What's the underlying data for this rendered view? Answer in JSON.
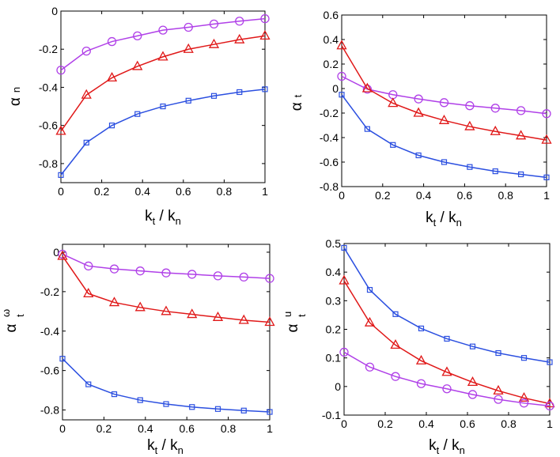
{
  "figure": {
    "panels": [
      {
        "id": "alpha-n",
        "y_symbol": "α",
        "y_sub": "n",
        "y_sup": "",
        "x_label_k": "k",
        "x_label_sub1": "t",
        "x_label_slash": " / k",
        "x_label_sub2": "n"
      },
      {
        "id": "alpha-t",
        "y_symbol": "α",
        "y_sub": "t",
        "y_sup": "",
        "x_label_k": "k",
        "x_label_sub1": "t",
        "x_label_slash": " / k",
        "x_label_sub2": "n"
      },
      {
        "id": "alpha-t-omega",
        "y_symbol": "α",
        "y_sub": "t",
        "y_sup": "ω",
        "x_label_k": "k",
        "x_label_sub1": "t",
        "x_label_slash": " / k",
        "x_label_sub2": "n"
      },
      {
        "id": "alpha-t-u",
        "y_symbol": "α",
        "y_sub": "t",
        "y_sup": "u",
        "x_label_k": "k",
        "x_label_sub1": "t",
        "x_label_slash": " / k",
        "x_label_sub2": "n"
      }
    ]
  },
  "colors": {
    "blue": "#2b4fe0",
    "red": "#e01818",
    "purple": "#b040e8"
  },
  "chart_data": [
    {
      "type": "line",
      "title": "",
      "xlabel": "k_t / k_n",
      "ylabel": "α_n",
      "xlim": [
        0,
        1
      ],
      "ylim": [
        -0.9,
        0
      ],
      "xticks": [
        0,
        0.2,
        0.4,
        0.6,
        0.8,
        1
      ],
      "xtick_labels": [
        "0",
        "0.2",
        "0.4",
        "0.6",
        "0.8",
        "1"
      ],
      "yticks": [
        -0.8,
        -0.6,
        -0.4,
        -0.2,
        0
      ],
      "ytick_labels": [
        "-0.8",
        "-0.6",
        "-0.4",
        "-0.2",
        "0"
      ],
      "x": [
        0,
        0.125,
        0.25,
        0.375,
        0.5,
        0.625,
        0.75,
        0.875,
        1
      ],
      "series": [
        {
          "name": "purple circles",
          "marker": "circle",
          "color": "#b040e8",
          "values": [
            -0.31,
            -0.21,
            -0.16,
            -0.13,
            -0.1,
            -0.085,
            -0.068,
            -0.053,
            -0.04
          ]
        },
        {
          "name": "red triangles",
          "marker": "triangle",
          "color": "#e01818",
          "values": [
            -0.63,
            -0.44,
            -0.35,
            -0.29,
            -0.24,
            -0.2,
            -0.175,
            -0.15,
            -0.13
          ]
        },
        {
          "name": "blue squares",
          "marker": "square",
          "color": "#2b4fe0",
          "values": [
            -0.86,
            -0.69,
            -0.6,
            -0.54,
            -0.5,
            -0.47,
            -0.445,
            -0.425,
            -0.41
          ]
        }
      ]
    },
    {
      "type": "line",
      "title": "",
      "xlabel": "k_t / k_n",
      "ylabel": "α_t",
      "xlim": [
        0,
        1
      ],
      "ylim": [
        -0.8,
        0.6
      ],
      "xticks": [
        0,
        0.2,
        0.4,
        0.6,
        0.8,
        1
      ],
      "xtick_labels": [
        "0",
        "0.2",
        "0.4",
        "0.6",
        "0.8",
        "1"
      ],
      "yticks": [
        -0.8,
        -0.6,
        -0.4,
        -0.2,
        0,
        0.2,
        0.4,
        0.6
      ],
      "ytick_labels": [
        "-0.8",
        "-0.6",
        "-0.4",
        "-0.2",
        "0",
        "0.2",
        "0.4",
        "0.6"
      ],
      "x": [
        0,
        0.125,
        0.25,
        0.375,
        0.5,
        0.625,
        0.75,
        0.875,
        1
      ],
      "series": [
        {
          "name": "purple circles",
          "marker": "circle",
          "color": "#b040e8",
          "values": [
            0.1,
            -0.005,
            -0.05,
            -0.085,
            -0.115,
            -0.14,
            -0.16,
            -0.18,
            -0.205
          ]
        },
        {
          "name": "red triangles",
          "marker": "triangle",
          "color": "#e01818",
          "values": [
            0.35,
            0.0,
            -0.12,
            -0.2,
            -0.26,
            -0.31,
            -0.35,
            -0.385,
            -0.42
          ]
        },
        {
          "name": "blue squares",
          "marker": "square",
          "color": "#2b4fe0",
          "values": [
            -0.05,
            -0.33,
            -0.46,
            -0.545,
            -0.6,
            -0.64,
            -0.675,
            -0.7,
            -0.725
          ]
        }
      ]
    },
    {
      "type": "line",
      "title": "",
      "xlabel": "k_t / k_n",
      "ylabel": "α_t^ω",
      "xlim": [
        0,
        1
      ],
      "ylim": [
        -0.85,
        0.04
      ],
      "xticks": [
        0,
        0.2,
        0.4,
        0.6,
        0.8,
        1
      ],
      "xtick_labels": [
        "0",
        "0.2",
        "0.4",
        "0.6",
        "0.8",
        "1"
      ],
      "yticks": [
        -0.8,
        -0.6,
        -0.4,
        -0.2,
        0
      ],
      "ytick_labels": [
        "-0.8",
        "-0.6",
        "-0.4",
        "-0.2",
        "0"
      ],
      "x": [
        0,
        0.125,
        0.25,
        0.375,
        0.5,
        0.625,
        0.75,
        0.875,
        1
      ],
      "series": [
        {
          "name": "purple circles",
          "marker": "circle",
          "color": "#b040e8",
          "values": [
            -0.01,
            -0.07,
            -0.085,
            -0.095,
            -0.105,
            -0.112,
            -0.12,
            -0.126,
            -0.133
          ]
        },
        {
          "name": "red triangles",
          "marker": "triangle",
          "color": "#e01818",
          "values": [
            -0.02,
            -0.21,
            -0.255,
            -0.28,
            -0.3,
            -0.315,
            -0.33,
            -0.345,
            -0.355
          ]
        },
        {
          "name": "blue squares",
          "marker": "square",
          "color": "#2b4fe0",
          "values": [
            -0.54,
            -0.67,
            -0.72,
            -0.75,
            -0.77,
            -0.785,
            -0.795,
            -0.803,
            -0.81
          ]
        }
      ]
    },
    {
      "type": "line",
      "title": "",
      "xlabel": "k_t / k_n",
      "ylabel": "α_t^u",
      "xlim": [
        0,
        1
      ],
      "ylim": [
        -0.1,
        0.5
      ],
      "xticks": [
        0,
        0.2,
        0.4,
        0.6,
        0.8,
        1
      ],
      "xtick_labels": [
        "0",
        "0.2",
        "0.4",
        "0.6",
        "0.8",
        "1"
      ],
      "yticks": [
        -0.1,
        0,
        0.1,
        0.2,
        0.3,
        0.4,
        0.5
      ],
      "ytick_labels": [
        "-0.1",
        "0",
        "0.1",
        "0.2",
        "0.3",
        "0.4",
        "0.5"
      ],
      "x": [
        0,
        0.125,
        0.25,
        0.375,
        0.5,
        0.625,
        0.75,
        0.875,
        1
      ],
      "series": [
        {
          "name": "blue squares",
          "marker": "square",
          "color": "#2b4fe0",
          "values": [
            0.485,
            0.338,
            0.253,
            0.203,
            0.167,
            0.14,
            0.117,
            0.1,
            0.085
          ]
        },
        {
          "name": "red triangles",
          "marker": "triangle",
          "color": "#e01818",
          "values": [
            0.37,
            0.223,
            0.145,
            0.09,
            0.05,
            0.015,
            -0.015,
            -0.04,
            -0.06
          ]
        },
        {
          "name": "purple circles",
          "marker": "circle",
          "color": "#b040e8",
          "values": [
            0.12,
            0.068,
            0.035,
            0.01,
            -0.008,
            -0.028,
            -0.045,
            -0.058,
            -0.068
          ]
        }
      ]
    }
  ]
}
